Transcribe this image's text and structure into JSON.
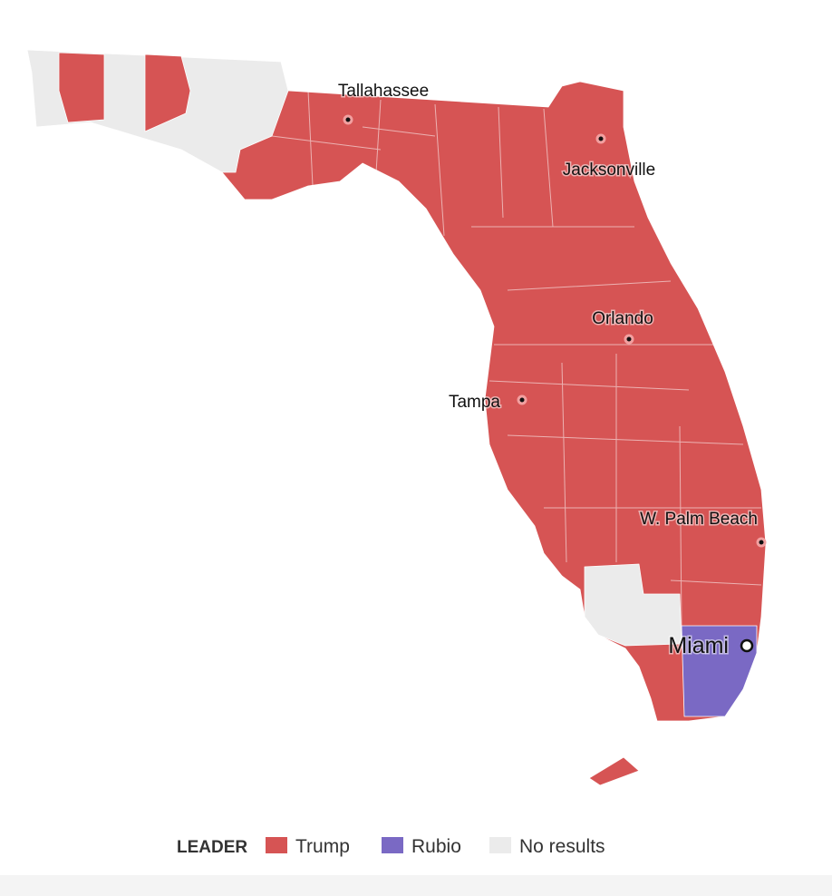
{
  "legend": {
    "title": "LEADER",
    "items": [
      {
        "name": "Trump",
        "color": "#d65454"
      },
      {
        "name": "Rubio",
        "color": "#7a69c4"
      },
      {
        "name": "No results",
        "color": "#ebebeb"
      }
    ]
  },
  "cities": [
    {
      "label": "Tallahassee"
    },
    {
      "label": "Jacksonville"
    },
    {
      "label": "Orlando"
    },
    {
      "label": "Tampa"
    },
    {
      "label": "W. Palm Beach"
    },
    {
      "label": "Miami"
    }
  ]
}
